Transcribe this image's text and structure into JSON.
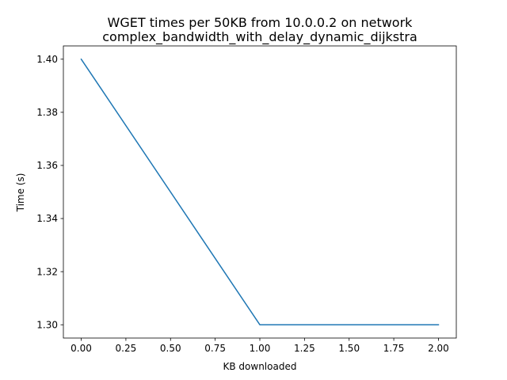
{
  "chart_data": {
    "type": "line",
    "title_lines": [
      "WGET times per 50KB from 10.0.0.2 on network",
      "complex_bandwidth_with_delay_dynamic_dijkstra"
    ],
    "xlabel": "KB downloaded",
    "ylabel": "Time (s)",
    "xlim": [
      -0.1,
      2.1
    ],
    "ylim": [
      1.295,
      1.405
    ],
    "x_ticks": [
      0.0,
      0.25,
      0.5,
      0.75,
      1.0,
      1.25,
      1.5,
      1.75,
      2.0
    ],
    "x_tick_labels": [
      "0.00",
      "0.25",
      "0.50",
      "0.75",
      "1.00",
      "1.25",
      "1.50",
      "1.75",
      "2.00"
    ],
    "y_ticks": [
      1.3,
      1.32,
      1.34,
      1.36,
      1.38,
      1.4
    ],
    "y_tick_labels": [
      "1.30",
      "1.32",
      "1.34",
      "1.36",
      "1.38",
      "1.40"
    ],
    "grid": false,
    "series": [
      {
        "x": [
          0,
          1,
          2
        ],
        "values": [
          1.4,
          1.3,
          1.3
        ],
        "color": "#1f77b4"
      }
    ]
  }
}
